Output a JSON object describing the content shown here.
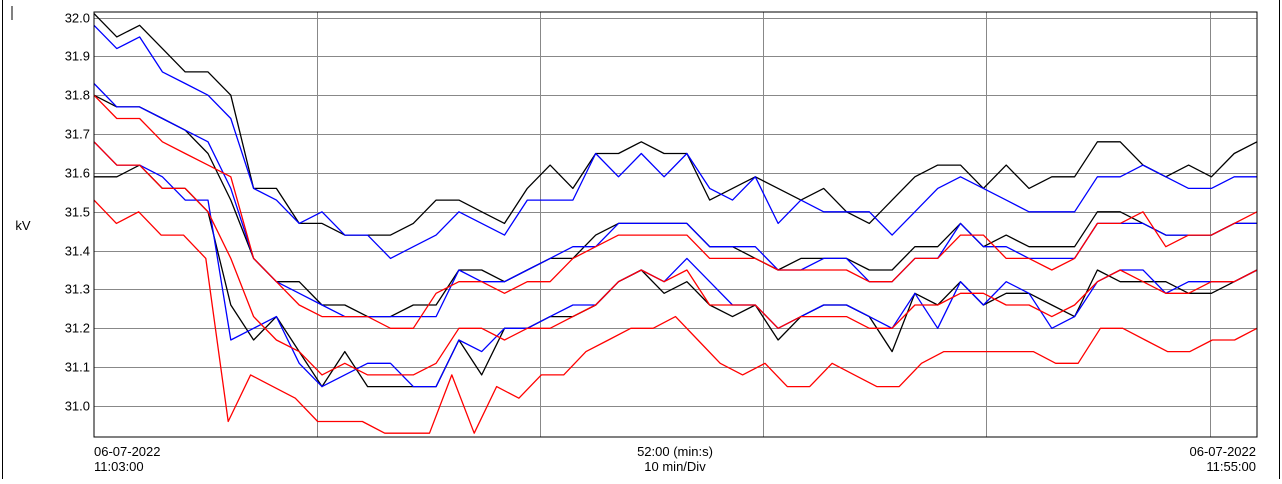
{
  "chart_data": {
    "type": "line",
    "ylabel": "kV",
    "ylim": [
      30.93,
      32.01
    ],
    "y_ticks": [
      "32.0",
      "31.9",
      "31.8",
      "31.7",
      "31.6",
      "31.5",
      "31.4",
      "31.3",
      "31.2",
      "31.1",
      "31.0"
    ],
    "x_label_left": [
      "06-07-2022",
      "11:03:00"
    ],
    "x_label_center": [
      "52:00 (min:s)",
      "10 min/Div"
    ],
    "x_label_right": [
      "06-07-2022",
      "11:55:00"
    ],
    "x_minutes_range": [
      0,
      52
    ],
    "grid": true,
    "series": [
      {
        "color": "#000000",
        "values": [
          32.01,
          31.95,
          31.98,
          31.92,
          31.86,
          31.86,
          31.8,
          31.56,
          31.56,
          31.47,
          31.47,
          31.44,
          31.44,
          31.44,
          31.47,
          31.53,
          31.53,
          31.5,
          31.47,
          31.56,
          31.62,
          31.56,
          31.65,
          31.65,
          31.68,
          31.65,
          31.65,
          31.53,
          31.56,
          31.59,
          31.56,
          31.53,
          31.56,
          31.5,
          31.47,
          31.53,
          31.59,
          31.62,
          31.62,
          31.56,
          31.62,
          31.56,
          31.59,
          31.59,
          31.68,
          31.68,
          31.62,
          31.59,
          31.62,
          31.59,
          31.65,
          31.68
        ]
      },
      {
        "color": "#0000ff",
        "values": [
          31.98,
          31.92,
          31.95,
          31.86,
          31.83,
          31.8,
          31.74,
          31.56,
          31.53,
          31.47,
          31.5,
          31.44,
          31.44,
          31.38,
          31.41,
          31.44,
          31.5,
          31.47,
          31.44,
          31.53,
          31.53,
          31.53,
          31.65,
          31.59,
          31.65,
          31.59,
          31.65,
          31.56,
          31.53,
          31.59,
          31.47,
          31.53,
          31.5,
          31.5,
          31.5,
          31.44,
          31.5,
          31.56,
          31.59,
          31.56,
          31.53,
          31.5,
          31.5,
          31.5,
          31.59,
          31.59,
          31.62,
          31.59,
          31.56,
          31.56,
          31.59,
          31.59
        ]
      },
      {
        "color": "#000000",
        "values": [
          31.8,
          31.77,
          31.77,
          31.74,
          31.71,
          31.65,
          31.53,
          31.38,
          31.32,
          31.32,
          31.26,
          31.26,
          31.23,
          31.23,
          31.26,
          31.26,
          31.35,
          31.35,
          31.32,
          31.35,
          31.38,
          31.38,
          31.44,
          31.47,
          31.47,
          31.47,
          31.47,
          31.41,
          31.41,
          31.38,
          31.35,
          31.38,
          31.38,
          31.38,
          31.35,
          31.35,
          31.41,
          31.41,
          31.47,
          31.41,
          31.44,
          31.41,
          31.41,
          31.41,
          31.5,
          31.5,
          31.47,
          31.44,
          31.44,
          31.44,
          31.47,
          31.47
        ]
      },
      {
        "color": "#0000ff",
        "values": [
          31.83,
          31.77,
          31.77,
          31.74,
          31.71,
          31.68,
          31.56,
          31.38,
          31.32,
          31.29,
          31.26,
          31.23,
          31.23,
          31.23,
          31.23,
          31.23,
          31.35,
          31.32,
          31.32,
          31.35,
          31.38,
          31.41,
          31.41,
          31.47,
          31.47,
          31.47,
          31.47,
          31.41,
          31.41,
          31.41,
          31.35,
          31.35,
          31.38,
          31.38,
          31.32,
          31.32,
          31.38,
          31.38,
          31.47,
          31.41,
          31.41,
          31.38,
          31.38,
          31.38,
          31.47,
          31.47,
          31.47,
          31.44,
          31.44,
          31.44,
          31.47,
          31.47
        ]
      },
      {
        "color": "#ff0000",
        "values": [
          31.8,
          31.74,
          31.74,
          31.68,
          31.65,
          31.62,
          31.59,
          31.38,
          31.32,
          31.26,
          31.23,
          31.23,
          31.23,
          31.2,
          31.2,
          31.29,
          31.32,
          31.32,
          31.29,
          31.32,
          31.32,
          31.38,
          31.41,
          31.44,
          31.44,
          31.44,
          31.44,
          31.38,
          31.38,
          31.38,
          31.35,
          31.35,
          31.35,
          31.35,
          31.32,
          31.32,
          31.38,
          31.38,
          31.44,
          31.44,
          31.38,
          31.38,
          31.35,
          31.38,
          31.47,
          31.47,
          31.5,
          31.41,
          31.44,
          31.44,
          31.47,
          31.5
        ]
      },
      {
        "color": "#000000",
        "values": [
          31.59,
          31.59,
          31.62,
          31.56,
          31.56,
          31.5,
          31.26,
          31.17,
          31.23,
          31.14,
          31.05,
          31.14,
          31.05,
          31.05,
          31.05,
          31.05,
          31.17,
          31.08,
          31.2,
          31.2,
          31.23,
          31.23,
          31.26,
          31.32,
          31.35,
          31.29,
          31.32,
          31.26,
          31.23,
          31.26,
          31.17,
          31.23,
          31.26,
          31.26,
          31.23,
          31.14,
          31.29,
          31.26,
          31.32,
          31.26,
          31.29,
          31.29,
          31.26,
          31.23,
          31.35,
          31.32,
          31.32,
          31.32,
          31.29,
          31.29,
          31.32,
          31.35
        ]
      },
      {
        "color": "#0000ff",
        "values": [
          31.68,
          31.62,
          31.62,
          31.59,
          31.53,
          31.53,
          31.17,
          31.2,
          31.23,
          31.11,
          31.05,
          31.08,
          31.11,
          31.11,
          31.05,
          31.05,
          31.17,
          31.14,
          31.2,
          31.2,
          31.23,
          31.26,
          31.26,
          31.32,
          31.35,
          31.32,
          31.38,
          31.32,
          31.26,
          31.26,
          31.2,
          31.23,
          31.26,
          31.26,
          31.23,
          31.2,
          31.29,
          31.2,
          31.32,
          31.26,
          31.32,
          31.29,
          31.2,
          31.23,
          31.32,
          31.35,
          31.35,
          31.29,
          31.32,
          31.32,
          31.32,
          31.35
        ]
      },
      {
        "color": "#ff0000",
        "values": [
          31.68,
          31.62,
          31.62,
          31.56,
          31.56,
          31.5,
          31.38,
          31.23,
          31.17,
          31.14,
          31.08,
          31.11,
          31.08,
          31.08,
          31.08,
          31.11,
          31.2,
          31.2,
          31.17,
          31.2,
          31.2,
          31.23,
          31.26,
          31.32,
          31.35,
          31.32,
          31.35,
          31.26,
          31.26,
          31.26,
          31.2,
          31.23,
          31.23,
          31.23,
          31.2,
          31.2,
          31.26,
          31.26,
          31.29,
          31.29,
          31.26,
          31.26,
          31.23,
          31.26,
          31.32,
          31.35,
          31.32,
          31.29,
          31.29,
          31.32,
          31.32,
          31.35
        ]
      },
      {
        "color": "#ff0000",
        "values": [
          31.53,
          31.47,
          31.5,
          31.44,
          31.44,
          31.38,
          30.96,
          31.08,
          31.05,
          31.02,
          30.96,
          30.96,
          30.96,
          30.93,
          30.93,
          30.93,
          31.08,
          30.93,
          31.05,
          31.02,
          31.08,
          31.08,
          31.14,
          31.17,
          31.2,
          31.2,
          31.23,
          31.17,
          31.11,
          31.08,
          31.11,
          31.05,
          31.05,
          31.11,
          31.08,
          31.05,
          31.05,
          31.11,
          31.14,
          31.14,
          31.14,
          31.14,
          31.14,
          31.11,
          31.11,
          31.2,
          31.2,
          31.17,
          31.14,
          31.14,
          31.17,
          31.17,
          31.2
        ]
      }
    ]
  }
}
